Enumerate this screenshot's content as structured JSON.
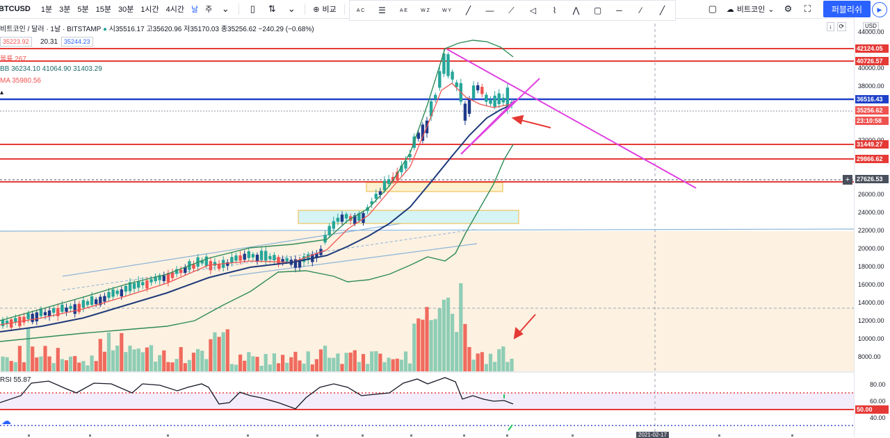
{
  "toolbar": {
    "symbol": "BTCUSD",
    "intervals": [
      "1분",
      "3분",
      "5분",
      "15분",
      "30분",
      "1시간",
      "4시간",
      "날",
      "주"
    ],
    "active_interval": "날",
    "compare_label": "비교",
    "cloud_label": "비트코인",
    "publish_label": "퍼블리쉬",
    "draw_letters": [
      "A C",
      "A E",
      "W Z",
      "W Y"
    ]
  },
  "legend": {
    "title": "비트코인 / 달러 · 1날 · BITSTAMP",
    "ohlc": "시35516.17 고35620.96 저35170.03 종35256.62 −240.29 (−0.68%)",
    "bid": "35223.92",
    "spread": "20.31",
    "ask": "35244.23",
    "volume": "볼륨 267",
    "bb": "BB 36234.10 41064.90 31403.29",
    "ma": "MA 35980.56",
    "rsi": "RSI 55.87",
    "currency": "USD"
  },
  "price_axis": {
    "ticks": [
      "44000.00",
      "40000.00",
      "38000.00",
      "32000.00",
      "26000.00",
      "24000.00",
      "22000.00",
      "20000.00",
      "18000.00",
      "16000.00",
      "14000.00",
      "12000.00",
      "10000.00",
      "8000.00"
    ],
    "labels": [
      {
        "text": "42124.05",
        "color": "#e53935"
      },
      {
        "text": "40726.57",
        "color": "#e53935"
      },
      {
        "text": "36516.43",
        "color": "#1e40c8"
      },
      {
        "text": "35256.62",
        "color": "#ef5350"
      },
      {
        "text": "23:10:58",
        "color": "#ef5350"
      },
      {
        "text": "31449.27",
        "color": "#e53935"
      },
      {
        "text": "29866.62",
        "color": "#e53935"
      },
      {
        "text": "27626.53",
        "color": "#4a4f5c"
      }
    ],
    "rsi_ticks": [
      "80.00",
      "60.00",
      "40.00"
    ],
    "rsi_label": "50.00",
    "date_label": "2021-02-17"
  },
  "colors": {
    "up": "#26a69a",
    "down": "#ef5350",
    "h_line": "#e53935",
    "blue_line": "#1e40c8",
    "pink": "#e040e0"
  }
}
